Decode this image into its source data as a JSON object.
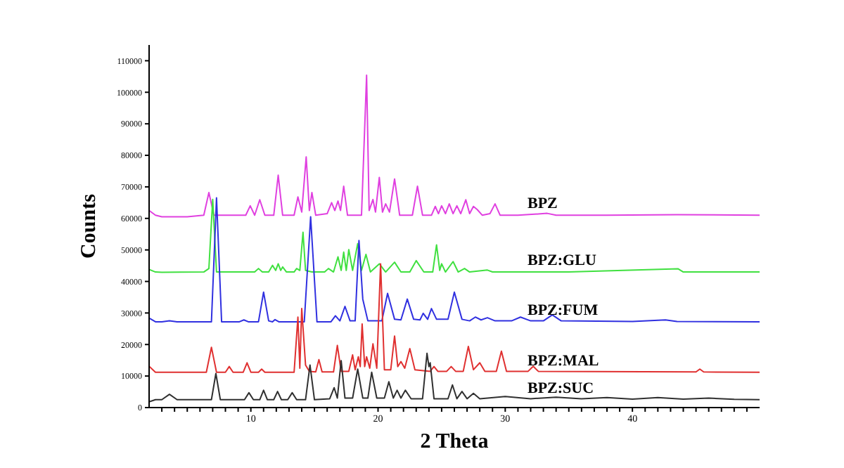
{
  "chart_data": {
    "type": "line",
    "xlabel": "2 Theta",
    "ylabel": "Counts",
    "xlim": [
      2,
      50
    ],
    "ylim": [
      0,
      115000
    ],
    "xticks": [
      {
        "value": 3,
        "label": null
      },
      {
        "value": 4,
        "label": null
      },
      {
        "value": 5,
        "label": null
      },
      {
        "value": 6,
        "label": null
      },
      {
        "value": 7,
        "label": null
      },
      {
        "value": 8,
        "label": null
      },
      {
        "value": 9,
        "label": null
      },
      10,
      {
        "value": 11,
        "label": null
      },
      {
        "value": 12,
        "label": null
      },
      {
        "value": 13,
        "label": null
      },
      {
        "value": 14,
        "label": null
      },
      {
        "value": 15,
        "label": null
      },
      {
        "value": 16,
        "label": null
      },
      {
        "value": 17,
        "label": null
      },
      {
        "value": 18,
        "label": null
      },
      {
        "value": 19,
        "label": null
      },
      20,
      {
        "value": 21,
        "label": null
      },
      {
        "value": 22,
        "label": null
      },
      {
        "value": 23,
        "label": null
      },
      {
        "value": 24,
        "label": null
      },
      {
        "value": 25,
        "label": null
      },
      {
        "value": 26,
        "label": null
      },
      {
        "value": 27,
        "label": null
      },
      {
        "value": 28,
        "label": null
      },
      {
        "value": 29,
        "label": null
      },
      30,
      {
        "value": 31,
        "label": null
      },
      {
        "value": 32,
        "label": null
      },
      {
        "value": 33,
        "label": null
      },
      {
        "value": 34,
        "label": null
      },
      {
        "value": 35,
        "label": null
      },
      {
        "value": 36,
        "label": null
      },
      {
        "value": 37,
        "label": null
      },
      {
        "value": 38,
        "label": null
      },
      {
        "value": 39,
        "label": null
      },
      40,
      {
        "value": 41,
        "label": null
      },
      {
        "value": 42,
        "label": null
      },
      {
        "value": 43,
        "label": null
      },
      {
        "value": 44,
        "label": null
      },
      {
        "value": 45,
        "label": null
      },
      {
        "value": 46,
        "label": null
      },
      {
        "value": 47,
        "label": null
      },
      {
        "value": 48,
        "label": null
      },
      {
        "value": 49,
        "label": null
      }
    ],
    "yticks": [
      0,
      10000,
      20000,
      30000,
      40000,
      50000,
      60000,
      70000,
      80000,
      90000,
      100000,
      110000
    ],
    "series": [
      {
        "name": "BPZ",
        "color": "#e040e0",
        "x": [
          2,
          2.5,
          3,
          5,
          6.3,
          6.7,
          7.1,
          9.6,
          9.95,
          10.3,
          10.7,
          11.1,
          11.8,
          12.15,
          12.5,
          13.4,
          13.7,
          14.0,
          14.35,
          14.6,
          14.8,
          15.1,
          16.0,
          16.35,
          16.6,
          16.85,
          17.05,
          17.3,
          17.6,
          18.7,
          19.1,
          19.3,
          19.6,
          19.8,
          20.1,
          20.35,
          20.6,
          20.9,
          21.3,
          21.7,
          22.7,
          23.1,
          23.5,
          24.2,
          24.5,
          24.75,
          25.0,
          25.3,
          25.6,
          25.9,
          26.2,
          26.5,
          26.9,
          27.2,
          27.5,
          27.8,
          28.2,
          28.8,
          29.2,
          29.6,
          31,
          33.3,
          34,
          38,
          43.5,
          50
        ],
        "values": [
          62500,
          61000,
          60500,
          60500,
          61000,
          68200,
          61000,
          61000,
          64000,
          61000,
          65900,
          61000,
          61000,
          73700,
          61000,
          61000,
          66800,
          62000,
          79500,
          62500,
          68200,
          61000,
          61500,
          65000,
          62500,
          65500,
          62500,
          70200,
          61000,
          61000,
          105400,
          62500,
          66000,
          62000,
          73000,
          62000,
          64600,
          62000,
          72500,
          61000,
          61000,
          70200,
          61000,
          61000,
          63800,
          61500,
          64000,
          61500,
          64600,
          61500,
          64000,
          61500,
          65900,
          61500,
          63800,
          62800,
          61000,
          61500,
          64600,
          61000,
          61000,
          61600,
          61000,
          61000,
          61200,
          61000
        ]
      },
      {
        "name": "BPZ:GLU",
        "color": "#40e040",
        "x": [
          2,
          2.5,
          3,
          6.3,
          6.7,
          7.0,
          7.3,
          10.3,
          10.6,
          10.9,
          11.4,
          11.7,
          11.95,
          12.15,
          12.35,
          12.5,
          12.8,
          13.4,
          13.6,
          13.85,
          14.1,
          14.3,
          14.5,
          14.8,
          15.8,
          16.1,
          16.5,
          16.85,
          17.1,
          17.3,
          17.5,
          17.7,
          18.0,
          18.4,
          18.7,
          19.05,
          19.4,
          20.1,
          20.6,
          21.3,
          21.8,
          22.5,
          23.0,
          23.6,
          24.3,
          24.6,
          24.85,
          25.0,
          25.3,
          25.9,
          26.3,
          26.8,
          27.2,
          28.6,
          29,
          35,
          43.6,
          44,
          50
        ],
        "values": [
          43800,
          43000,
          42900,
          43000,
          44100,
          66000,
          43000,
          43000,
          44100,
          43000,
          43000,
          45100,
          43500,
          45600,
          43500,
          44600,
          43000,
          43000,
          44100,
          43500,
          55600,
          43500,
          43300,
          43000,
          43000,
          44100,
          43000,
          47800,
          43500,
          49300,
          43500,
          50100,
          43500,
          52000,
          43500,
          48600,
          43000,
          45600,
          43000,
          46100,
          43000,
          43000,
          46600,
          43000,
          43000,
          51600,
          43500,
          45600,
          43000,
          46300,
          43000,
          44100,
          43000,
          43600,
          43000,
          43000,
          44000,
          43000,
          43000
        ]
      },
      {
        "name": "BPZ:FUM",
        "color": "#3030e0",
        "x": [
          2,
          2.5,
          3,
          3.6,
          4.2,
          6.9,
          7.3,
          7.7,
          9.1,
          9.45,
          9.8,
          10.6,
          11.0,
          11.4,
          11.7,
          11.9,
          12.2,
          14.2,
          14.7,
          15.2,
          16.3,
          16.65,
          17.0,
          17.4,
          17.8,
          18.2,
          18.5,
          18.8,
          19.2,
          20.3,
          20.75,
          21.3,
          21.8,
          22.3,
          22.8,
          23.3,
          23.55,
          23.9,
          24.2,
          24.6,
          25.5,
          26.0,
          26.6,
          27.2,
          27.65,
          28.1,
          28.6,
          29.2,
          30.5,
          31.2,
          32,
          33.0,
          33.7,
          34.4,
          40,
          42.6,
          43.5,
          50
        ],
        "values": [
          28400,
          27200,
          27200,
          27500,
          27200,
          27200,
          66500,
          27200,
          27200,
          27800,
          27200,
          27200,
          36600,
          27500,
          27200,
          27900,
          27200,
          27200,
          60500,
          27200,
          27200,
          29100,
          27500,
          32100,
          27500,
          27500,
          53000,
          34400,
          27500,
          27500,
          36200,
          28000,
          27800,
          34400,
          28000,
          27800,
          29900,
          28000,
          31400,
          28000,
          28000,
          36600,
          28000,
          27500,
          28700,
          27800,
          28500,
          27500,
          27500,
          28700,
          27500,
          27500,
          29400,
          27500,
          27300,
          27800,
          27300,
          27200
        ]
      },
      {
        "name": "BPZ:MAL",
        "color": "#e03030",
        "x": [
          2,
          2.5,
          3,
          6.5,
          6.9,
          7.3,
          8.0,
          8.3,
          8.6,
          9.4,
          9.7,
          10.0,
          10.6,
          10.85,
          11.1,
          13.4,
          13.7,
          13.85,
          14.0,
          14.3,
          14.6,
          15.1,
          15.35,
          15.6,
          16.5,
          16.8,
          17.1,
          17.7,
          18.0,
          18.2,
          18.45,
          18.6,
          18.75,
          18.95,
          19.1,
          19.35,
          19.6,
          19.9,
          20.2,
          20.5,
          21.0,
          21.3,
          21.55,
          21.8,
          22.1,
          22.5,
          22.9,
          24.1,
          24.4,
          24.7,
          25.4,
          25.75,
          26.1,
          26.7,
          27.1,
          27.5,
          28.0,
          28.4,
          29.3,
          29.7,
          30.1,
          31.8,
          32.2,
          32.6,
          45.0,
          45.3,
          45.6,
          50
        ],
        "values": [
          13100,
          11200,
          11200,
          11200,
          19100,
          11200,
          11200,
          13000,
          11200,
          11200,
          14200,
          11200,
          11200,
          12200,
          11200,
          11200,
          28700,
          12500,
          31400,
          13500,
          11500,
          11300,
          15200,
          11300,
          11300,
          19700,
          11500,
          11500,
          16700,
          12000,
          16100,
          13000,
          26500,
          13000,
          16100,
          12500,
          20200,
          12500,
          45600,
          12000,
          12000,
          22700,
          13000,
          14600,
          12500,
          18700,
          12000,
          11500,
          13000,
          11500,
          11500,
          13000,
          11500,
          11500,
          19400,
          12000,
          14200,
          11500,
          11500,
          17900,
          11500,
          11500,
          13100,
          11500,
          11300,
          12200,
          11300,
          11200
        ]
      },
      {
        "name": "BPZ:SUC",
        "color": "#303030",
        "x": [
          2,
          2.5,
          3,
          3.6,
          4.2,
          6.9,
          7.25,
          7.6,
          9.5,
          9.85,
          10.2,
          10.7,
          11.0,
          11.3,
          11.8,
          12.1,
          12.4,
          12.9,
          13.25,
          13.6,
          14.3,
          14.65,
          15.0,
          16.2,
          16.55,
          16.8,
          17.1,
          17.4,
          18.0,
          18.4,
          18.8,
          19.2,
          19.5,
          19.9,
          20.5,
          20.85,
          21.2,
          21.5,
          21.8,
          22.15,
          22.6,
          23.5,
          23.85,
          24.0,
          24.1,
          24.4,
          25.5,
          25.85,
          26.2,
          26.6,
          27.0,
          27.5,
          28,
          30,
          32,
          34,
          36,
          38,
          40,
          42,
          44,
          46,
          48,
          50
        ],
        "values": [
          1800,
          2500,
          2500,
          4200,
          2500,
          2500,
          10800,
          2500,
          2500,
          4700,
          2500,
          2500,
          5500,
          2500,
          2500,
          5100,
          2500,
          2500,
          4700,
          2500,
          2500,
          13500,
          2500,
          2800,
          6300,
          3000,
          14900,
          3000,
          3000,
          12200,
          3000,
          3000,
          11200,
          3000,
          3000,
          8200,
          3000,
          5500,
          3000,
          5500,
          2800,
          2800,
          17200,
          13000,
          14200,
          2800,
          2800,
          7200,
          2800,
          5100,
          2800,
          4500,
          2800,
          3500,
          2800,
          3300,
          2800,
          3200,
          2700,
          3200,
          2700,
          3000,
          2600,
          2500
        ]
      }
    ]
  }
}
